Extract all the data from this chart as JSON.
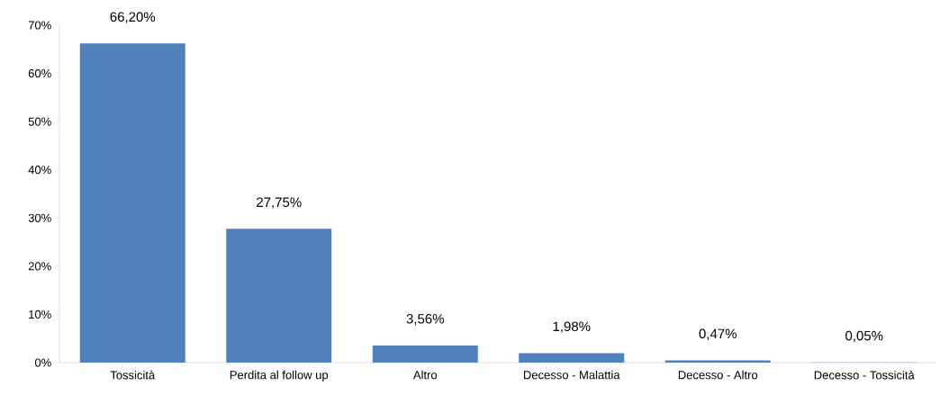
{
  "chart_data": {
    "type": "bar",
    "categories": [
      "Tossicità",
      "Perdita al follow up",
      "Altro",
      "Decesso - Malattia",
      "Decesso - Altro",
      "Decesso - Tossicità"
    ],
    "values": [
      66.2,
      27.75,
      3.56,
      1.98,
      0.47,
      0.05
    ],
    "value_labels": [
      "66,20%",
      "27,75%",
      "3,56%",
      "1,98%",
      "0,47%",
      "0,05%"
    ],
    "color": "#4f81bd",
    "ylim": [
      0,
      70
    ],
    "yticks": [
      {
        "value": 0,
        "label": "0%"
      },
      {
        "value": 10,
        "label": "10%"
      },
      {
        "value": 20,
        "label": "20%"
      },
      {
        "value": 30,
        "label": "30%"
      },
      {
        "value": 40,
        "label": "40%"
      },
      {
        "value": 50,
        "label": "50%"
      },
      {
        "value": 60,
        "label": "60%"
      },
      {
        "value": 70,
        "label": "70%"
      }
    ]
  }
}
